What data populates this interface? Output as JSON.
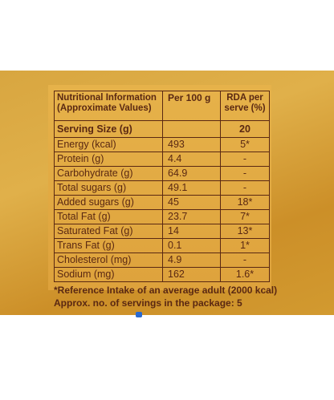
{
  "table": {
    "header": [
      [
        "Nutritional Information",
        "(Approximate Values)"
      ],
      [
        "Per 100 g"
      ],
      [
        "RDA per",
        "serve (%)"
      ]
    ],
    "serving": {
      "label": "Serving Size (g)",
      "rda": "20"
    },
    "rows": [
      [
        "Energy (kcal)",
        "493",
        "5*"
      ],
      [
        "Protein (g)",
        "4.4",
        "-"
      ],
      [
        "Carbohydrate (g)",
        "64.9",
        "-"
      ],
      [
        "Total sugars (g)",
        "49.1",
        "-"
      ],
      [
        "Added sugars (g)",
        "45",
        "18*"
      ],
      [
        "Total Fat (g)",
        "23.7",
        "7*"
      ],
      [
        "Saturated Fat (g)",
        "14",
        "13*"
      ],
      [
        "Trans Fat (g)",
        "0.1",
        "1*"
      ],
      [
        "Cholesterol (mg)",
        "4.9",
        "-"
      ],
      [
        "Sodium (mg)",
        "162",
        "1.6*"
      ]
    ]
  },
  "footnotes": [
    "*Reference Intake of an average adult (2000 kcal)",
    "Approx. no. of servings in the package: 5"
  ]
}
